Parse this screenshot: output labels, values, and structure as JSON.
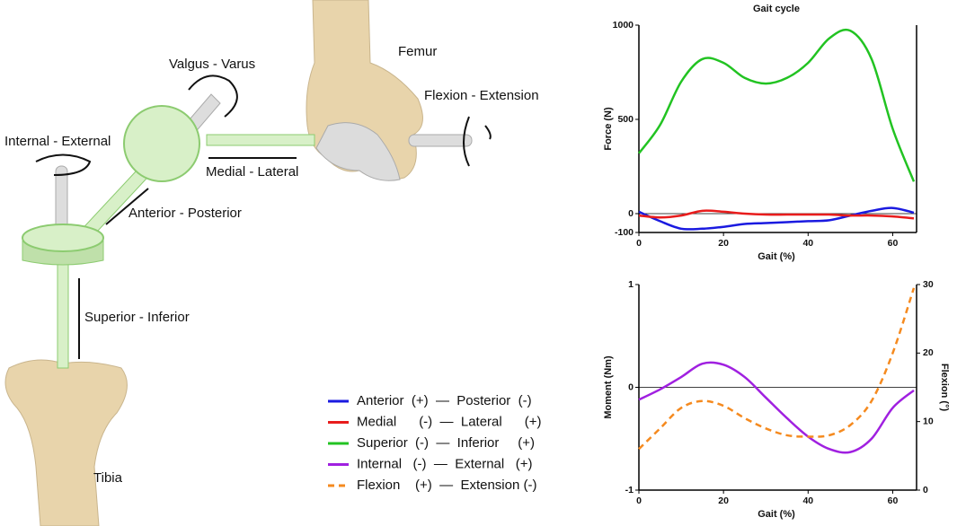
{
  "diagram": {
    "labels": {
      "valgus_varus": "Valgus - Varus",
      "femur": "Femur",
      "flexion_extension": "Flexion - Extension",
      "internal_external": "Internal - External",
      "medial_lateral": "Medial - Lateral",
      "anterior_posterior": "Anterior - Posterior",
      "superior_inferior": "Superior - Inferior",
      "tibia": "Tibia"
    }
  },
  "chart_data": [
    {
      "type": "line",
      "title": "Gait cycle",
      "xlabel": "Gait (%)",
      "ylabel": "Force (N)",
      "x": [
        0,
        5,
        10,
        15,
        20,
        25,
        30,
        35,
        40,
        45,
        50,
        55,
        60,
        65
      ],
      "xlim": [
        0,
        65
      ],
      "xticks": [
        0,
        20,
        40,
        60
      ],
      "ylim": [
        -100,
        1000
      ],
      "yticks": [
        -100,
        0,
        500,
        1000
      ],
      "series": [
        {
          "name": "Anterior  (+)  —  Posterior  (-)",
          "color": "#1a1ae0",
          "values": [
            10,
            -40,
            -80,
            -80,
            -70,
            -55,
            -50,
            -45,
            -40,
            -35,
            -10,
            15,
            30,
            5
          ]
        },
        {
          "name": "Medial      (-)  —  Lateral      (+)",
          "color": "#e81c1c",
          "values": [
            -10,
            -20,
            -10,
            15,
            10,
            0,
            -5,
            -5,
            -5,
            -5,
            -10,
            -10,
            -15,
            -25
          ]
        },
        {
          "name": "Superior  (-)  —  Inferior     (+)",
          "color": "#22c322",
          "values": [
            320,
            470,
            700,
            820,
            800,
            720,
            690,
            720,
            800,
            930,
            970,
            820,
            450,
            170
          ]
        }
      ]
    },
    {
      "type": "line",
      "xlabel": "Gait (%)",
      "ylabel": "Moment (Nm)",
      "y2label": "Flexion (°)",
      "x": [
        0,
        5,
        10,
        15,
        20,
        25,
        30,
        35,
        40,
        45,
        50,
        55,
        60,
        65
      ],
      "xlim": [
        0,
        65
      ],
      "xticks": [
        0,
        20,
        40,
        60
      ],
      "ylim": [
        -1,
        1
      ],
      "yticks": [
        -1,
        0,
        1
      ],
      "y2lim": [
        0,
        30
      ],
      "y2ticks": [
        0,
        10,
        20,
        30
      ],
      "series": [
        {
          "name": "Internal   (-)  —  External   (+)",
          "color": "#a020e0",
          "values": [
            -0.12,
            -0.02,
            0.1,
            0.23,
            0.22,
            0.1,
            -0.1,
            -0.3,
            -0.48,
            -0.6,
            -0.63,
            -0.5,
            -0.2,
            -0.03
          ]
        },
        {
          "name": "Flexion    (+)  —  Extension (-)",
          "color": "#f58a1f",
          "axis": "y2",
          "linestyle": "dashed",
          "values": [
            6,
            9,
            12,
            13,
            12.3,
            10.5,
            9,
            8,
            7.8,
            8,
            9.5,
            13,
            20,
            29.5
          ]
        }
      ]
    }
  ]
}
